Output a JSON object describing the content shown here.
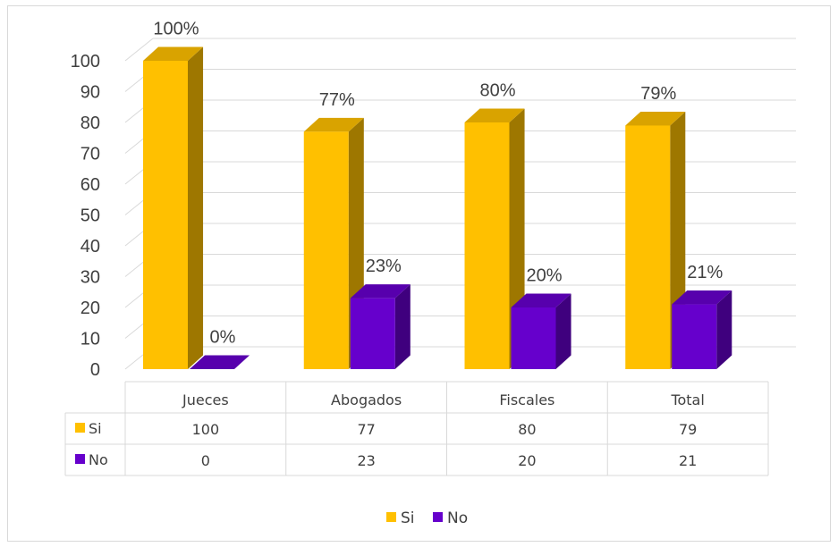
{
  "chart_data": {
    "type": "bar",
    "categories": [
      "Jueces",
      "Abogados",
      "Fiscales",
      "Total"
    ],
    "series": [
      {
        "name": "Si",
        "values": [
          100,
          77,
          80,
          79
        ],
        "labels": [
          "100%",
          "77%",
          "80%",
          "79%"
        ],
        "color": "#FFC000"
      },
      {
        "name": "No",
        "values": [
          0,
          23,
          20,
          21
        ],
        "labels": [
          "0%",
          "23%",
          "20%",
          "21%"
        ],
        "color": "#6600CC"
      }
    ],
    "yticks": [
      "0",
      "10",
      "20",
      "30",
      "40",
      "50",
      "60",
      "70",
      "80",
      "90",
      "100"
    ],
    "ylim": [
      0,
      100
    ],
    "grid": true,
    "legend": "bottom",
    "data_table": true
  }
}
